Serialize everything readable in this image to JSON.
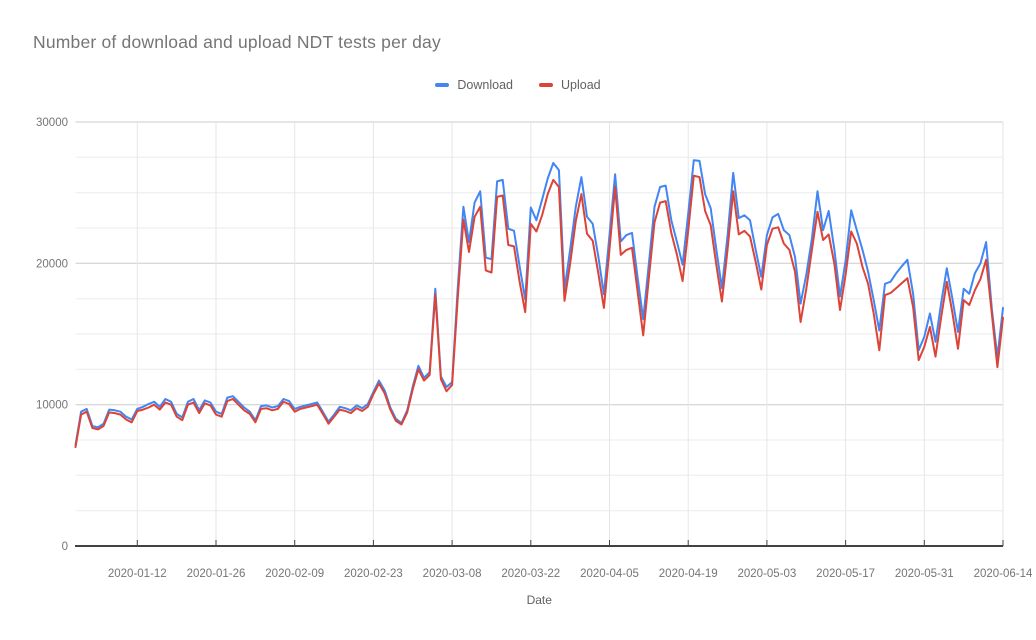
{
  "chart_data": {
    "type": "line",
    "title": "Number of download and upload NDT tests per day",
    "xlabel": "Date",
    "ylabel": "",
    "start_date": "2020-01-01",
    "end_date": "2020-06-14",
    "frequency": "daily",
    "y_min": 0,
    "y_max": 30000,
    "y_ticks": [
      {
        "value": 0,
        "label": "0"
      },
      {
        "value": 10000,
        "label": "10000"
      },
      {
        "value": 20000,
        "label": "20000"
      },
      {
        "value": 30000,
        "label": "30000"
      }
    ],
    "grid": {
      "minor_step": 2500,
      "major_step": 10000,
      "minor_color": "#ebebeb",
      "major_color": "#cccccc",
      "vertical_color": "#e6e6e6",
      "axis_color": "#424242"
    },
    "legend_position": "top-center",
    "x_ticks": [
      {
        "index": 11,
        "label": "2020-01-12"
      },
      {
        "index": 25,
        "label": "2020-01-26"
      },
      {
        "index": 39,
        "label": "2020-02-09"
      },
      {
        "index": 53,
        "label": "2020-02-23"
      },
      {
        "index": 67,
        "label": "2020-03-08"
      },
      {
        "index": 81,
        "label": "2020-03-22"
      },
      {
        "index": 95,
        "label": "2020-04-05"
      },
      {
        "index": 109,
        "label": "2020-04-19"
      },
      {
        "index": 123,
        "label": "2020-05-03"
      },
      {
        "index": 137,
        "label": "2020-05-17"
      },
      {
        "index": 151,
        "label": "2020-05-31"
      },
      {
        "index": 165,
        "label": "2020-06-14"
      }
    ],
    "series": [
      {
        "name": "Download",
        "color": "#4285F4",
        "values": [
          7150,
          9500,
          9700,
          8500,
          8400,
          8650,
          9650,
          9600,
          9500,
          9150,
          8950,
          9700,
          9850,
          10050,
          10200,
          9850,
          10400,
          10200,
          9350,
          9100,
          10200,
          10400,
          9600,
          10300,
          10150,
          9500,
          9350,
          10500,
          10600,
          10200,
          9800,
          9500,
          8900,
          9900,
          9950,
          9800,
          9900,
          10400,
          10250,
          9700,
          9850,
          9950,
          10050,
          10150,
          9500,
          8800,
          9300,
          9850,
          9750,
          9600,
          9950,
          9750,
          10050,
          10900,
          11700,
          11000,
          9800,
          9000,
          8700,
          9600,
          11300,
          12750,
          11900,
          12300,
          18200,
          12000,
          11250,
          11600,
          18200,
          24000,
          21500,
          24300,
          25100,
          20400,
          20300,
          25800,
          25900,
          22450,
          22300,
          19800,
          17450,
          23950,
          23050,
          24500,
          26000,
          27100,
          26600,
          18150,
          21000,
          24000,
          26100,
          23300,
          22800,
          20500,
          17800,
          22000,
          26300,
          21550,
          22000,
          22150,
          19000,
          16050,
          20000,
          24000,
          25400,
          25500,
          23050,
          21500,
          19900,
          23500,
          27300,
          27250,
          24900,
          23900,
          21000,
          18250,
          22000,
          26400,
          23200,
          23400,
          23050,
          20950,
          19050,
          22000,
          23250,
          23500,
          22350,
          22000,
          20450,
          17150,
          19200,
          21750,
          25100,
          22350,
          23700,
          20950,
          17650,
          20200,
          23750,
          22350,
          20950,
          19400,
          17400,
          15250,
          18550,
          18700,
          19300,
          19800,
          20250,
          17850,
          13850,
          14800,
          16450,
          14450,
          17200,
          19650,
          17500,
          15150,
          18200,
          17850,
          19300,
          20000,
          21500,
          16800,
          13350,
          16850
        ]
      },
      {
        "name": "Upload",
        "color": "#DB4437",
        "values": [
          7000,
          9300,
          9500,
          8350,
          8250,
          8500,
          9450,
          9400,
          9300,
          8950,
          8750,
          9550,
          9650,
          9800,
          10000,
          9650,
          10150,
          10000,
          9150,
          8900,
          10000,
          10150,
          9400,
          10100,
          9950,
          9300,
          9150,
          10250,
          10400,
          10000,
          9600,
          9350,
          8750,
          9700,
          9750,
          9600,
          9700,
          10200,
          10050,
          9500,
          9700,
          9800,
          9900,
          10000,
          9350,
          8650,
          9150,
          9650,
          9550,
          9400,
          9750,
          9550,
          9850,
          10750,
          11500,
          10800,
          9650,
          8850,
          8600,
          9450,
          11100,
          12500,
          11700,
          12100,
          17800,
          11800,
          10950,
          11400,
          17500,
          23100,
          20800,
          23300,
          24000,
          19500,
          19350,
          24700,
          24800,
          21300,
          21200,
          18700,
          16550,
          22800,
          22250,
          23400,
          24900,
          25900,
          25400,
          17350,
          20000,
          23000,
          24900,
          22100,
          21600,
          19300,
          16850,
          21000,
          25400,
          20600,
          20950,
          21100,
          18000,
          14900,
          19000,
          22900,
          24300,
          24400,
          22150,
          20600,
          18750,
          22300,
          26200,
          26100,
          23700,
          22700,
          19900,
          17300,
          21000,
          25100,
          22050,
          22300,
          21900,
          20100,
          18150,
          21300,
          22450,
          22550,
          21400,
          20950,
          19400,
          15850,
          18200,
          20950,
          23650,
          21650,
          22050,
          19950,
          16700,
          19200,
          22250,
          21400,
          19750,
          18550,
          16450,
          13850,
          17750,
          17900,
          18250,
          18600,
          18950,
          16900,
          13150,
          14100,
          15500,
          13400,
          16200,
          18700,
          16500,
          13950,
          17400,
          17050,
          18100,
          18900,
          20250,
          16450,
          12650,
          16150
        ]
      }
    ]
  }
}
